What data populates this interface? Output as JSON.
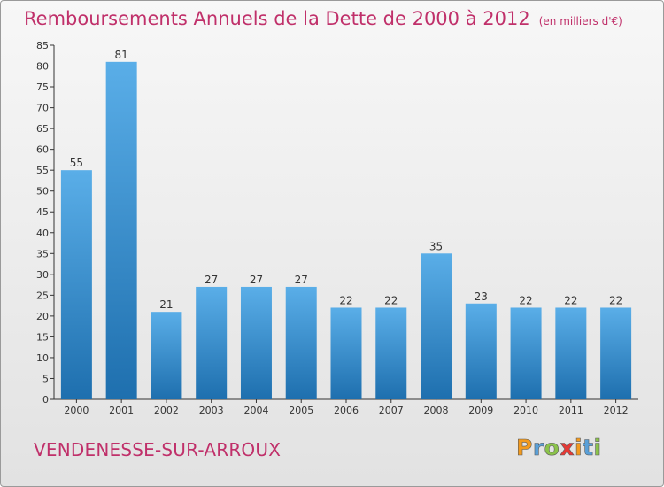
{
  "header": {
    "title": "Remboursements Annuels de la Dette de 2000 à 2012",
    "unit": "(en milliers d'€)"
  },
  "footer": {
    "commune": "VENDENESSE-SUR-ARROUX",
    "logo": [
      "P",
      "r",
      "o",
      "x",
      "i",
      "t",
      "i"
    ],
    "logo_colors": [
      "#f39a1e",
      "#5aa0d8",
      "#8bc34a",
      "#e53935",
      "#f39a1e",
      "#5aa0d8",
      "#8bc34a"
    ]
  },
  "colors": {
    "title": "#c0306a",
    "bar_top": "#5aaee8",
    "bar_bottom": "#1e6fae"
  },
  "chart_data": {
    "type": "bar",
    "title": "Remboursements Annuels de la Dette de 2000 à 2012",
    "unit": "(en milliers d'€)",
    "categories": [
      "2000",
      "2001",
      "2002",
      "2003",
      "2004",
      "2005",
      "2006",
      "2007",
      "2008",
      "2009",
      "2010",
      "2011",
      "2012"
    ],
    "values": [
      55,
      81,
      21,
      27,
      27,
      27,
      22,
      22,
      35,
      23,
      22,
      22,
      22
    ],
    "ylim": [
      0,
      85
    ],
    "yticks": [
      0,
      5,
      10,
      15,
      20,
      25,
      30,
      35,
      40,
      45,
      50,
      55,
      60,
      65,
      70,
      75,
      80,
      85
    ],
    "grid": false,
    "legend": "none"
  }
}
